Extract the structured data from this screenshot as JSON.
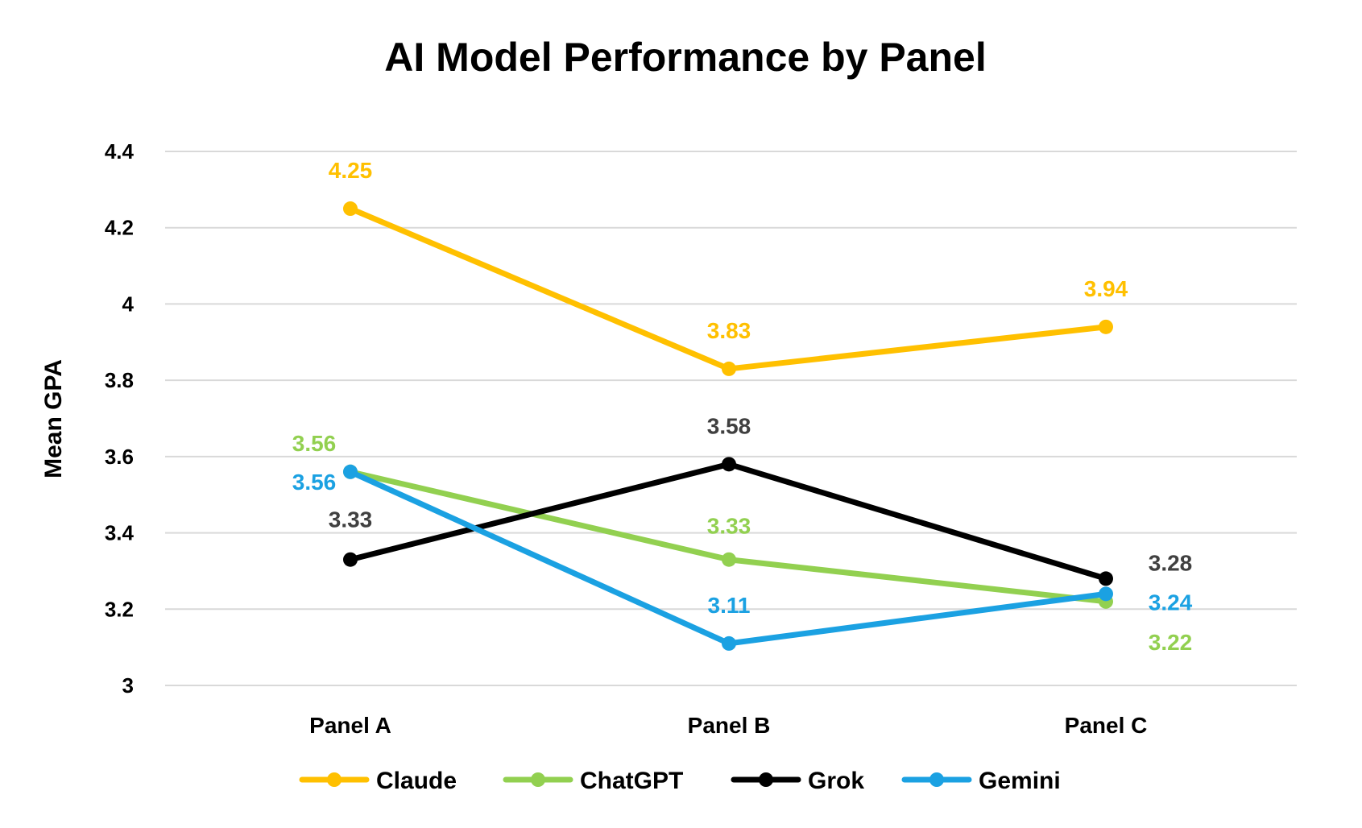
{
  "chart_data": {
    "type": "line",
    "title": "AI Model Performance by Panel",
    "ylabel": "Mean GPA",
    "xlabel": "",
    "categories": [
      "Panel A",
      "Panel B",
      "Panel C"
    ],
    "ylim": [
      3,
      4.4
    ],
    "yticks": [
      "3",
      "3.2",
      "3.4",
      "3.6",
      "3.8",
      "4",
      "4.2",
      "4.4"
    ],
    "ytick_values": [
      3,
      3.2,
      3.4,
      3.6,
      3.8,
      4,
      4.2,
      4.4
    ],
    "grid": true,
    "legend_position": "bottom",
    "series": [
      {
        "name": "Claude",
        "color": "#FFC000",
        "label_color": "#FFC000",
        "values": [
          4.25,
          3.83,
          3.94
        ],
        "labels": [
          "4.25",
          "3.83",
          "3.94"
        ]
      },
      {
        "name": "ChatGPT",
        "color": "#92D050",
        "label_color": "#92D050",
        "values": [
          3.56,
          3.33,
          3.22
        ],
        "labels": [
          "3.56",
          "3.33",
          "3.22"
        ]
      },
      {
        "name": "Grok",
        "color": "#000000",
        "label_color": "#404040",
        "values": [
          3.33,
          3.58,
          3.28
        ],
        "labels": [
          "3.33",
          "3.58",
          "3.28"
        ]
      },
      {
        "name": "Gemini",
        "color": "#1BA1E2",
        "label_color": "#1BA1E2",
        "values": [
          3.56,
          3.11,
          3.24
        ],
        "labels": [
          "3.56",
          "3.11",
          "3.24"
        ]
      }
    ]
  }
}
